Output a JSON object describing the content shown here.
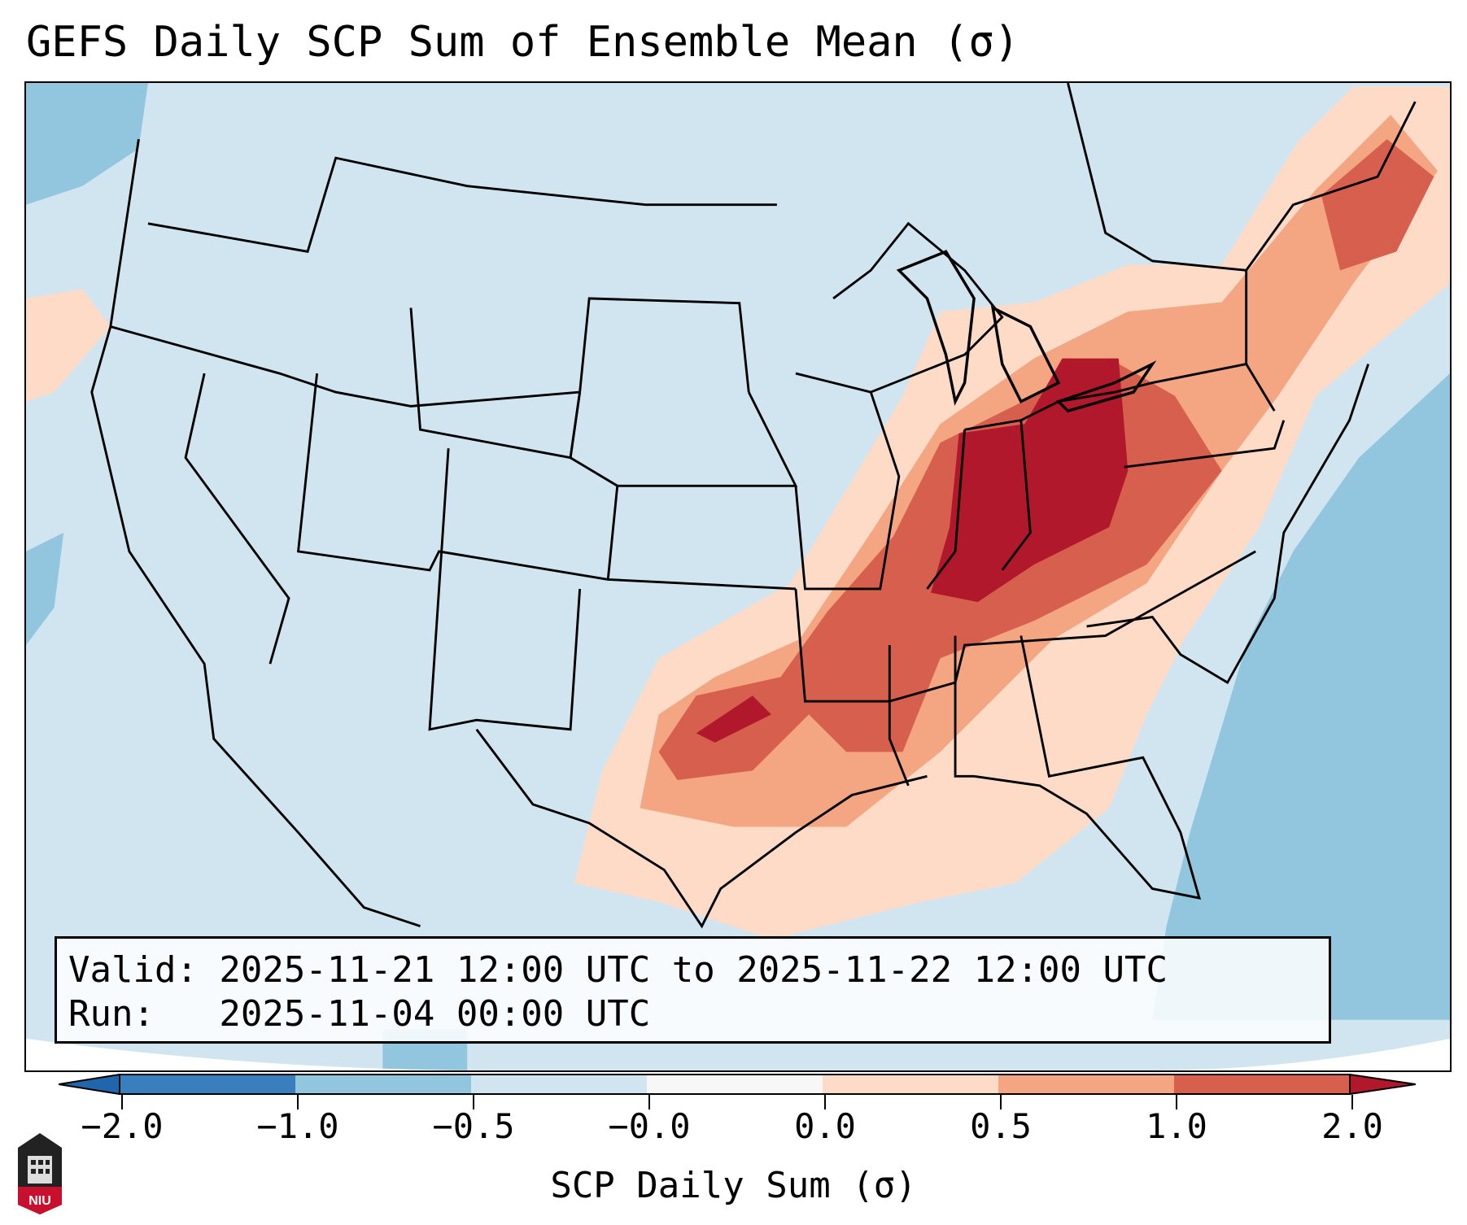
{
  "title": "GEFS Daily SCP Sum of Ensemble Mean (σ)",
  "info": {
    "valid_line": "Valid: 2025-11-21 12:00 UTC to 2025-11-22 12:00 UTC",
    "run_line": "Run:   2025-11-04 00:00 UTC"
  },
  "colorbar": {
    "label": "SCP Daily Sum (σ)",
    "ticks": [
      "−2.0",
      "−1.0",
      "−0.5",
      "−0.0",
      "0.0",
      "0.5",
      "1.0",
      "2.0"
    ],
    "colors": [
      "#3a7fbd",
      "#92c5de",
      "#d1e5f0",
      "#f7f7f7",
      "#fddbc7",
      "#f4a582",
      "#d6604d"
    ],
    "extend_low": "#2166ac",
    "extend_high": "#b2182b"
  },
  "logo": {
    "text": "NIU"
  }
}
